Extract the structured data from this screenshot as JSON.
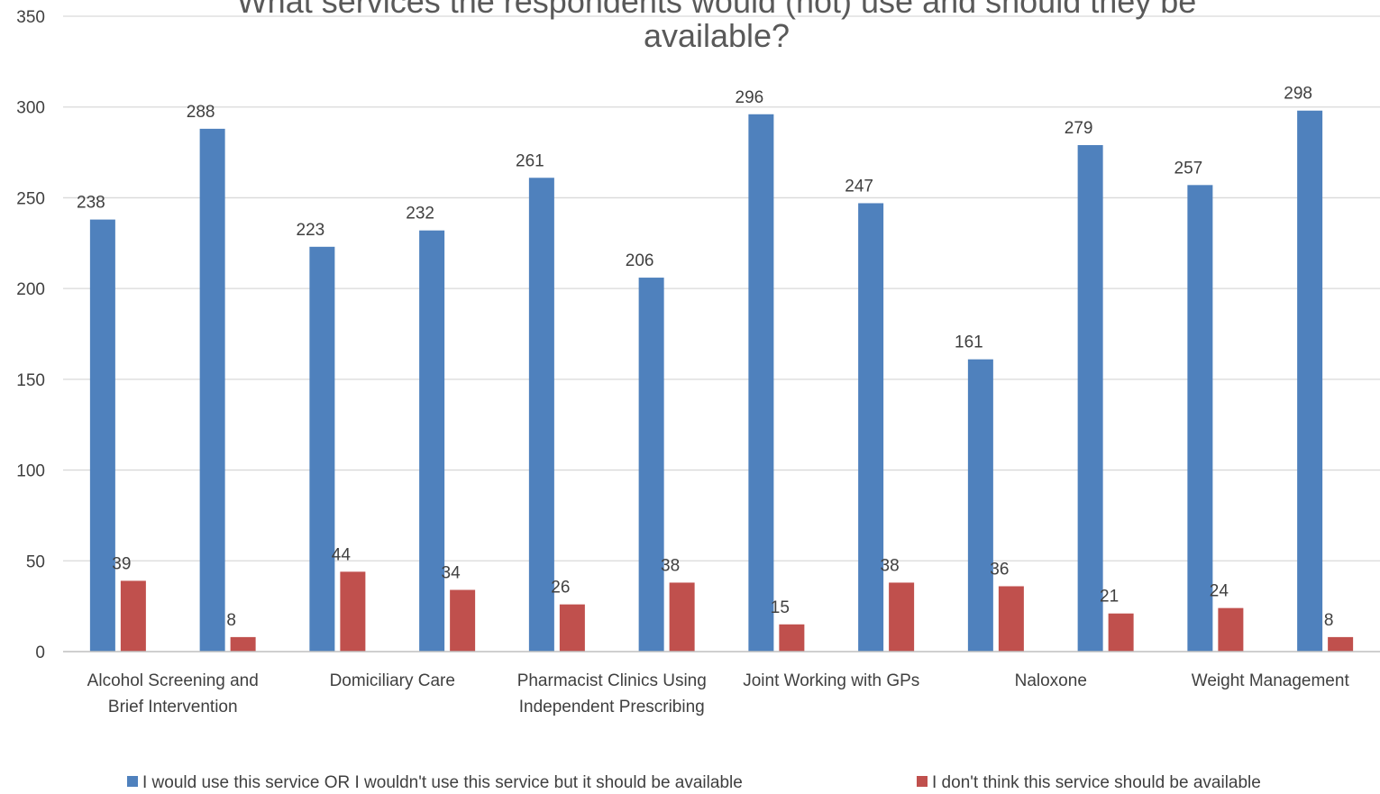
{
  "chart_data": {
    "type": "bar",
    "title_lines": [
      "What services the respondents would (not) use and should they be",
      "available?"
    ],
    "xlabel": "",
    "ylabel": "",
    "ylim": [
      0,
      350
    ],
    "yticks": [
      0,
      50,
      100,
      150,
      200,
      250,
      300,
      350
    ],
    "grid": true,
    "legend_position": "bottom",
    "categories": [
      "Alcohol Screening and Brief Intervention",
      "",
      "Domiciliary Care",
      "",
      "Pharmacist Clinics Using Independent Prescribing",
      "",
      "Joint Working with GPs",
      "",
      "Naloxone",
      "",
      "Weight Management",
      ""
    ],
    "category_label_lines": [
      [
        "Alcohol Screening and",
        "Brief Intervention"
      ],
      [],
      [
        "Domiciliary Care"
      ],
      [],
      [
        "Pharmacist Clinics Using",
        "Independent Prescribing"
      ],
      [],
      [
        "Joint Working with GPs"
      ],
      [],
      [
        "Naloxone"
      ],
      [],
      [
        "Weight Management"
      ],
      []
    ],
    "series": [
      {
        "name": "I would use this service OR I wouldn't use this service but it should be available",
        "color": "#4F81BD",
        "values": [
          238,
          288,
          223,
          232,
          261,
          206,
          296,
          247,
          161,
          279,
          257,
          298
        ]
      },
      {
        "name": "I don't think this service should be available",
        "color": "#C0504D",
        "values": [
          39,
          8,
          44,
          34,
          26,
          38,
          15,
          38,
          36,
          21,
          24,
          8
        ]
      }
    ],
    "gridline_color": "#D9D9D9",
    "axis_color": "#BFBFBF"
  }
}
